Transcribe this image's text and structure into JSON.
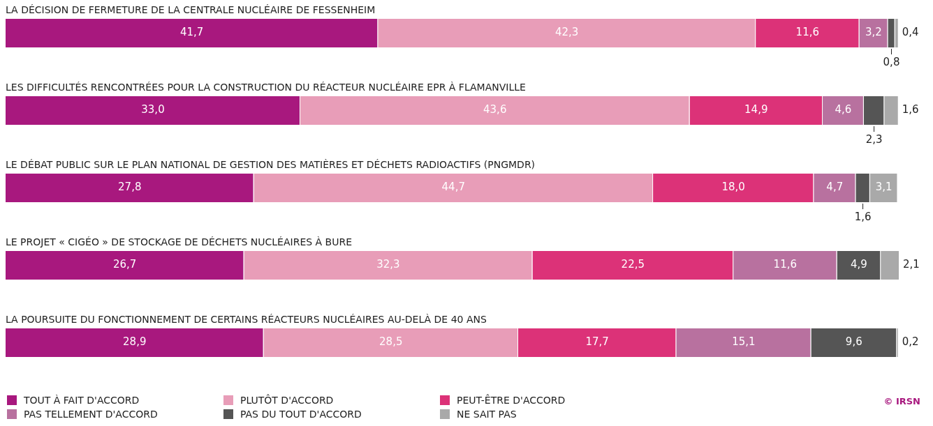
{
  "chart_data": {
    "type": "bar",
    "orientation": "horizontal",
    "stacked": true,
    "tick_labels": "y",
    "legend": "bottom left",
    "categories": [
      "LA DÉCISION DE FERMETURE DE LA CENTRALE NUCLÉAIRE DE FESSENHEIM",
      "LES DIFFICULTÉS RENCONTRÉES POUR LA CONSTRUCTION DU RÉACTEUR NUCLÉAIRE EPR À FLAMANVILLE",
      "LE DÉBAT PUBLIC SUR LE PLAN NATIONAL DE GESTION DES MATIÈRES ET DÉCHETS RADIOACTIFS (PNGMDR)",
      "LE PROJET « CIGÉO » DE STOCKAGE DE DÉCHETS NUCLÉAIRES À BURE",
      "LA POURSUITE DU FONCTIONNEMENT DE CERTAINS RÉACTEURS NUCLÉAIRES AU-DELÀ DE 40 ANS"
    ],
    "series": [
      {
        "name": "TOUT À FAIT D'ACCORD",
        "color": "#a8187e",
        "values": [
          41.7,
          33.0,
          27.8,
          26.7,
          28.9
        ],
        "value_labels": [
          "41,7",
          "33,0",
          "27,8",
          "26,7",
          "28,9"
        ]
      },
      {
        "name": "PLUTÔT D'ACCORD",
        "color": "#e89db8",
        "values": [
          42.3,
          43.6,
          44.7,
          32.3,
          28.5
        ],
        "value_labels": [
          "42,3",
          "43,6",
          "44,7",
          "32,3",
          "28,5"
        ]
      },
      {
        "name": "PEUT-ÊTRE D'ACCORD",
        "color": "#dc3278",
        "values": [
          11.6,
          14.9,
          18.0,
          22.5,
          17.7
        ],
        "value_labels": [
          "11,6",
          "14,9",
          "18,0",
          "22,5",
          "17,7"
        ]
      },
      {
        "name": "PAS TELLEMENT D'ACCORD",
        "color": "#b8719f",
        "values": [
          3.2,
          4.6,
          4.7,
          11.6,
          15.1
        ],
        "value_labels": [
          "3,2",
          "4,6",
          "4,7",
          "11,6",
          "15,1"
        ]
      },
      {
        "name": "PAS DU TOUT D'ACCORD",
        "color": "#555555",
        "values": [
          0.8,
          2.3,
          1.6,
          4.9,
          9.6
        ],
        "value_labels": [
          "0,8",
          "2,3",
          "1,6",
          "4,9",
          "9,6"
        ]
      },
      {
        "name": "NE SAIT PAS",
        "color": "#a9a9a9",
        "values": [
          0.4,
          1.6,
          3.1,
          2.1,
          0.2
        ],
        "value_labels": [
          "0,4",
          "1,6",
          "3,1",
          "2,1",
          "0,2"
        ]
      }
    ],
    "annotations": [
      "© IRSN"
    ]
  }
}
